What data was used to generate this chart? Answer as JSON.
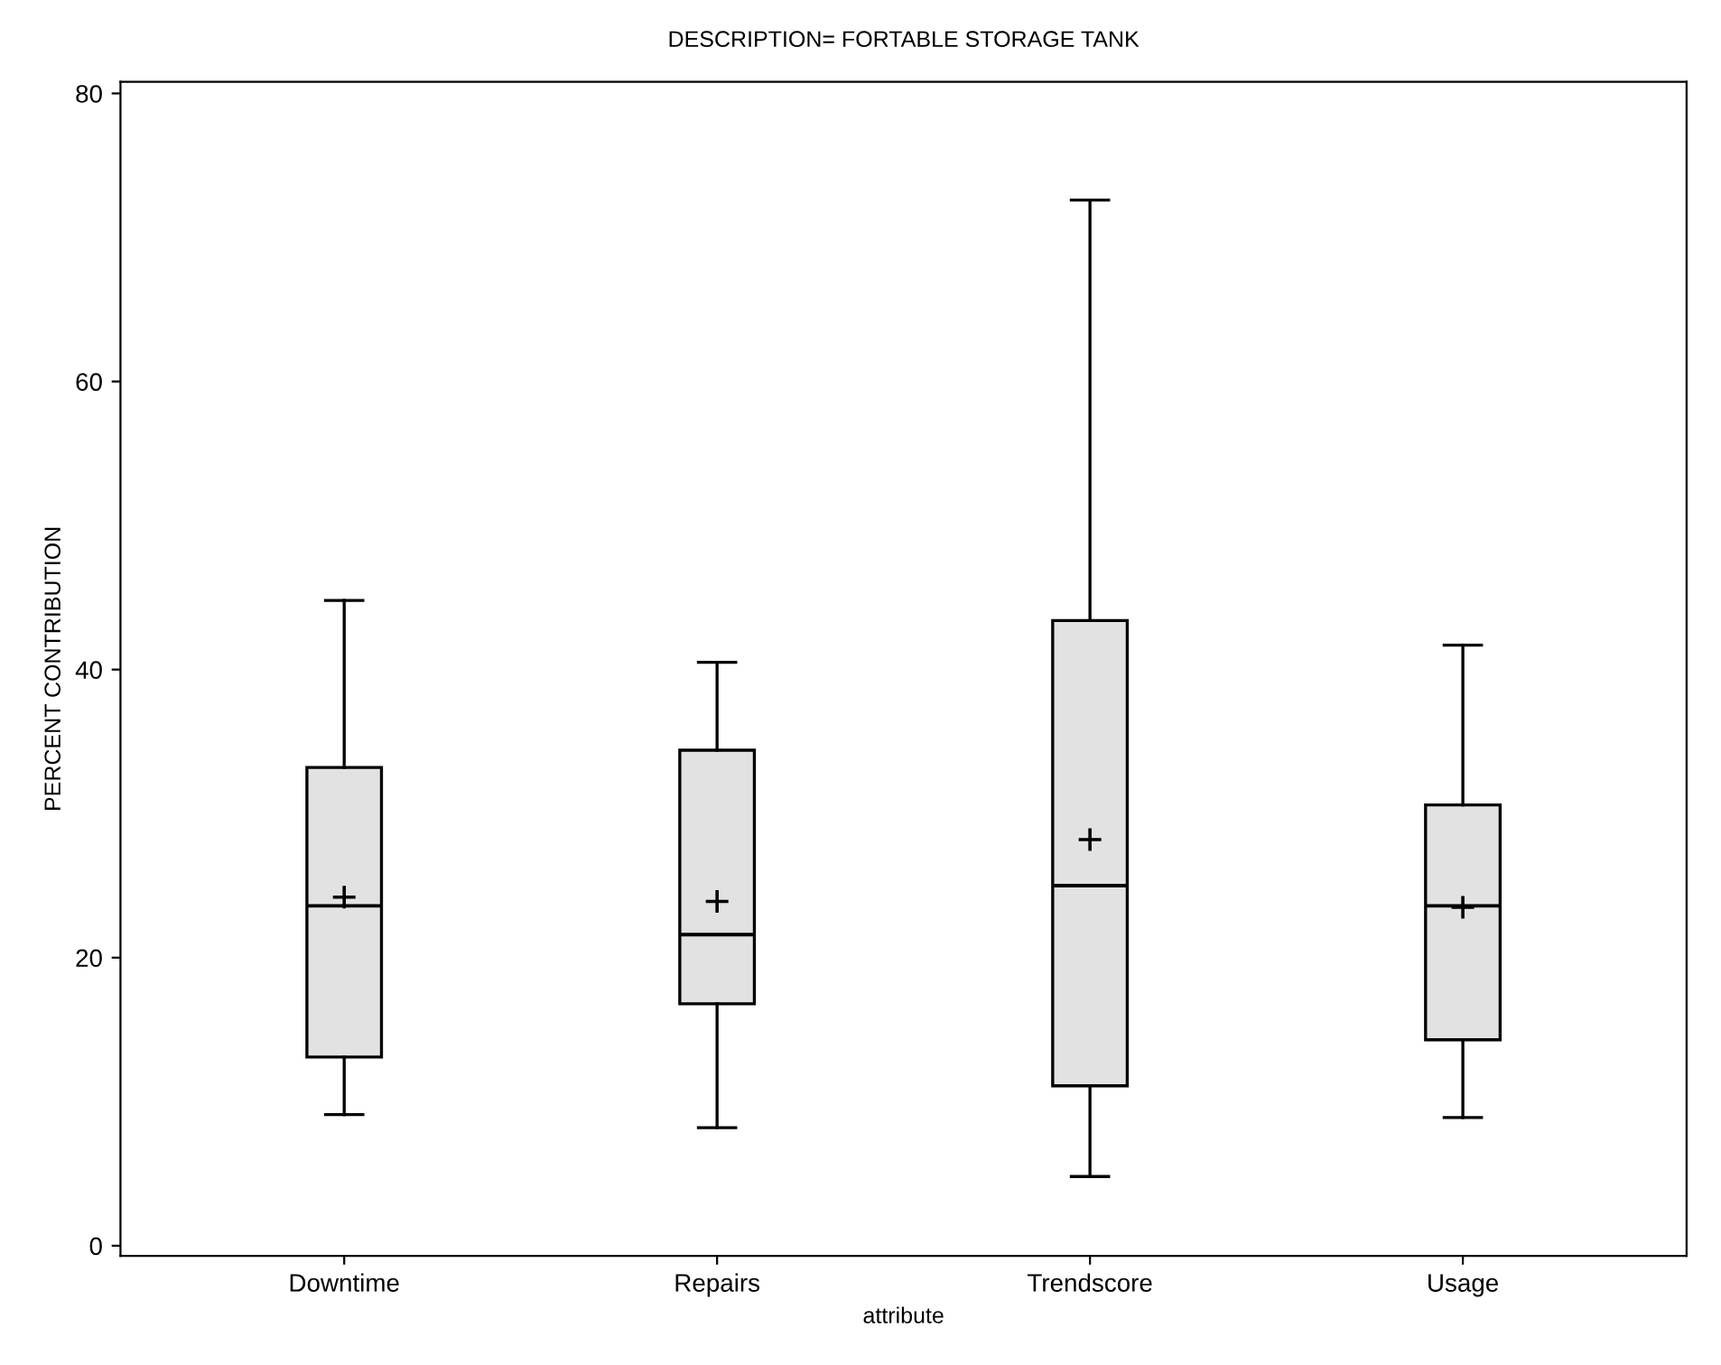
{
  "chart_data": {
    "type": "box",
    "title": "DESCRIPTION= FORTABLE STORAGE TANK",
    "xlabel": "attribute",
    "ylabel": "PERCENT CONTRIBUTION",
    "categories": [
      "Downtime",
      "Repairs",
      "Trendscore",
      "Usage"
    ],
    "color": "#e2e2e2",
    "boxes": [
      {
        "low": 9.1,
        "q1": 13.1,
        "median": 23.6,
        "q3": 33.2,
        "high": 44.8,
        "mean": 24.2
      },
      {
        "low": 8.2,
        "q1": 16.8,
        "median": 21.6,
        "q3": 34.4,
        "high": 40.5,
        "mean": 23.9
      },
      {
        "low": 4.8,
        "q1": 11.1,
        "median": 25.0,
        "q3": 43.4,
        "high": 72.6,
        "mean": 28.2
      },
      {
        "low": 8.9,
        "q1": 14.3,
        "median": 23.6,
        "q3": 30.6,
        "high": 41.7,
        "mean": 23.5
      }
    ],
    "ylim": [
      -0.7,
      80.8
    ],
    "yticks": [
      0,
      20,
      40,
      60,
      80
    ],
    "grid": false,
    "legend": false
  }
}
